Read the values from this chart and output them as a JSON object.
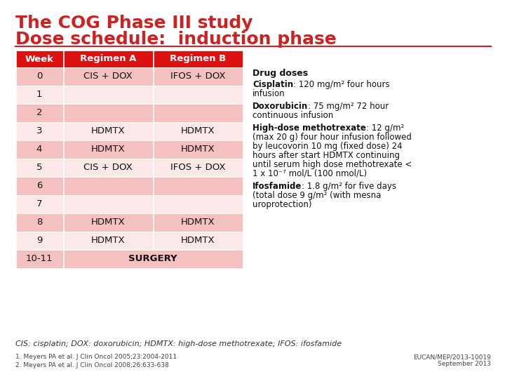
{
  "title_line1": "The COG Phase III study",
  "title_line2": "Dose schedule:  induction phase",
  "title_color": "#cc2222",
  "bg_color": "#ffffff",
  "header_bg": "#dd1111",
  "header_text_color": "#ffffff",
  "row_odd_bg": "#f5c0c0",
  "row_even_bg": "#fce8e8",
  "table_text_color": "#111111",
  "header_row": [
    "Week",
    "Regimen A",
    "Regimen B"
  ],
  "rows": [
    [
      "0",
      "CIS + DOX",
      "IFOS + DOX"
    ],
    [
      "1",
      "",
      ""
    ],
    [
      "2",
      "",
      ""
    ],
    [
      "3",
      "HDMTX",
      "HDMTX"
    ],
    [
      "4",
      "HDMTX",
      "HDMTX"
    ],
    [
      "5",
      "CIS + DOX",
      "IFOS + DOX"
    ],
    [
      "6",
      "",
      ""
    ],
    [
      "7",
      "",
      ""
    ],
    [
      "8",
      "HDMTX",
      "HDMTX"
    ],
    [
      "9",
      "HDMTX",
      "HDMTX"
    ],
    [
      "10-11",
      "SURGERY",
      ""
    ]
  ],
  "drug_doses_title": "Drug doses",
  "drug_doses_entries": [
    {
      "bold": "Cisplatin",
      "rest": ": 120 mg/m² four hours\ninfusion"
    },
    {
      "bold": "Doxorubicin",
      "rest": ": 75 mg/m² 72 hour\ncontinuous infusion"
    },
    {
      "bold": "High-dose methotrexate",
      "rest": ": 12 g/m²\n(max 20 g) four hour infusion followed\nby leucovorin 10 mg (fixed dose) 24\nhours after start HDMTX continuing\nuntil serum high dose methotrexate <\n1 x 10⁻⁷ mol/L (100 nmol/L)"
    },
    {
      "bold": "Ifosfamide",
      "rest": ": 1.8 g/m² for five days\n(total dose 9 g/m² (with mesna\nuroprotection)"
    }
  ],
  "footnote": "CIS: cisplatin; DOX: doxorubicin; HDMTX: high-dose methotrexate; IFOS: ifosfamide",
  "ref1": "1. Meyers PA et al. J Clin Oncol 2005;23:2004-2011",
  "ref2": "2. Meyers PA et al. J Clin Oncol 2008;26:633-638",
  "eucan": "EUCAN/MEP/2013-10019\nSeptember 2013"
}
